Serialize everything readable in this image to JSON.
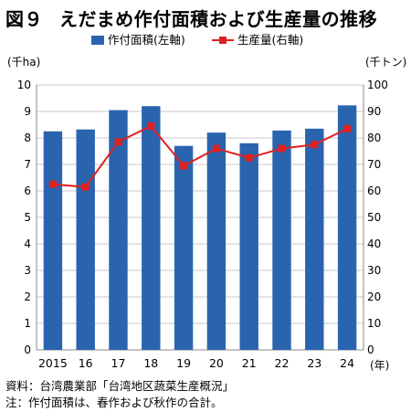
{
  "figure": {
    "number": "図９",
    "title": "えだまめ作付面積および生産量の推移"
  },
  "notes": {
    "source": "資料：台湾農業部「台湾地区蔬菜生産概況」",
    "note": "注：作付面積は、春作および秋作の合計。"
  },
  "chart_data": {
    "type": "bar",
    "categories": [
      "2015",
      "16",
      "17",
      "18",
      "19",
      "20",
      "21",
      "22",
      "23",
      "24"
    ],
    "x_unit": "(年)",
    "series": [
      {
        "name": "作付面積(左軸)",
        "type": "bar",
        "axis": "left",
        "color": "#2a64ae",
        "values": [
          8.25,
          8.32,
          9.05,
          9.2,
          7.7,
          8.2,
          7.8,
          8.28,
          8.35,
          9.23
        ]
      },
      {
        "name": "生産量(右軸)",
        "type": "line",
        "axis": "right",
        "color": "#e02020",
        "values": [
          62.5,
          61.5,
          78.5,
          84.5,
          69.5,
          76,
          72.5,
          76,
          77.5,
          83.5
        ]
      }
    ],
    "y_left": {
      "unit": "(千ha)",
      "min": 0,
      "max": 10,
      "step": 1,
      "ticks": [
        "0",
        "1",
        "2",
        "3",
        "4",
        "5",
        "6",
        "7",
        "8",
        "9",
        "10"
      ]
    },
    "y_right": {
      "unit": "(千トン)",
      "min": 0,
      "max": 100,
      "step": 10,
      "ticks": [
        "0",
        "10",
        "20",
        "30",
        "40",
        "50",
        "60",
        "70",
        "80",
        "90",
        "100"
      ]
    },
    "grid": true,
    "legend_position": "top"
  }
}
